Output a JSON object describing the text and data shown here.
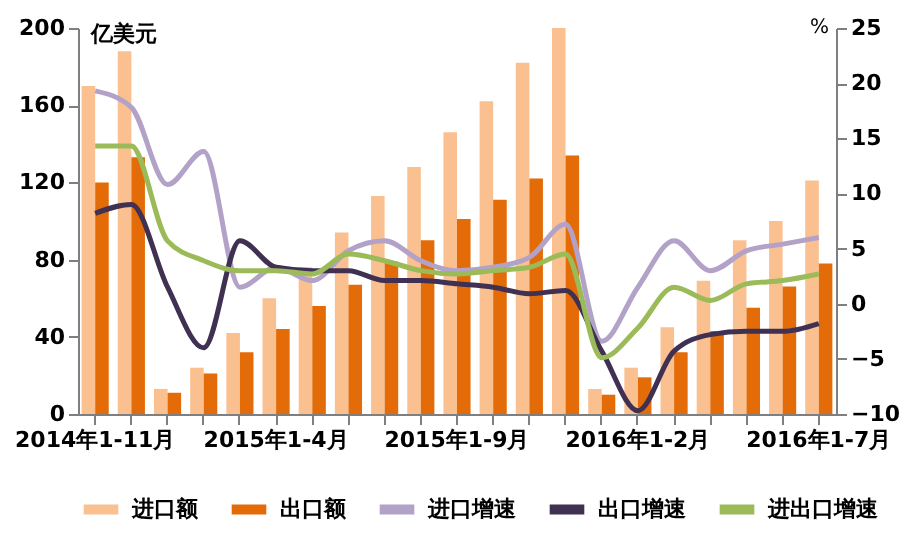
{
  "chart_data": {
    "type": "bar",
    "ylabel": "亿美元",
    "y2label": "%",
    "categories": [
      "2014年1-11月",
      null,
      null,
      null,
      null,
      "2015年1-4月",
      null,
      null,
      null,
      null,
      "2015年1-9月",
      null,
      null,
      null,
      null,
      "2016年1-2月",
      null,
      null,
      null,
      null,
      "2016年1-7月"
    ],
    "series": [
      {
        "name": "进口额",
        "color": "#fac090",
        "values": [
          170,
          188,
          13,
          24,
          42,
          60,
          76,
          94,
          113,
          128,
          146,
          162,
          182,
          200,
          13,
          24,
          45,
          69,
          90,
          100,
          121
        ]
      },
      {
        "name": "出口额",
        "color": "#e36c09",
        "values": [
          120,
          133,
          11,
          21,
          32,
          44,
          56,
          67,
          79,
          90,
          101,
          111,
          122,
          134,
          10,
          19,
          32,
          43,
          55,
          66,
          78
        ]
      },
      {
        "name": "进口增速",
        "type": "line",
        "axis": "y2",
        "color": "#b3a2c7",
        "values": [
          19.3,
          17.8,
          10.8,
          13.8,
          1.5,
          3.3,
          2.1,
          4.8,
          5.7,
          3.9,
          3.0,
          3.3,
          4.2,
          7.2,
          -3.4,
          1.5,
          5.7,
          3.0,
          4.8,
          5.4,
          6.0
        ]
      },
      {
        "name": "出口增速",
        "type": "line",
        "axis": "y2",
        "color": "#403152",
        "values": [
          8.2,
          9.0,
          1.5,
          -4.0,
          5.7,
          3.3,
          3.0,
          3.0,
          2.1,
          2.1,
          1.8,
          1.5,
          0.9,
          1.2,
          -4.3,
          -9.7,
          -4.3,
          -2.8,
          -2.5,
          -2.5,
          -1.8
        ]
      },
      {
        "name": "进出口增速",
        "type": "line",
        "axis": "y2",
        "color": "#9bbb59",
        "values": [
          14.3,
          14.3,
          5.7,
          3.9,
          3.0,
          3.0,
          2.7,
          4.5,
          3.9,
          3.0,
          2.7,
          3.0,
          3.3,
          4.5,
          -4.9,
          -2.2,
          1.5,
          0.3,
          1.8,
          2.1,
          2.7
        ]
      }
    ],
    "ylim": [
      0,
      200
    ],
    "yticks": [
      0,
      40,
      80,
      120,
      160,
      200
    ],
    "y2lim": [
      -10,
      25
    ],
    "y2ticks": [
      -10,
      -5,
      0,
      5,
      10,
      15,
      20,
      25
    ],
    "legend": "bottom",
    "grid": false
  }
}
